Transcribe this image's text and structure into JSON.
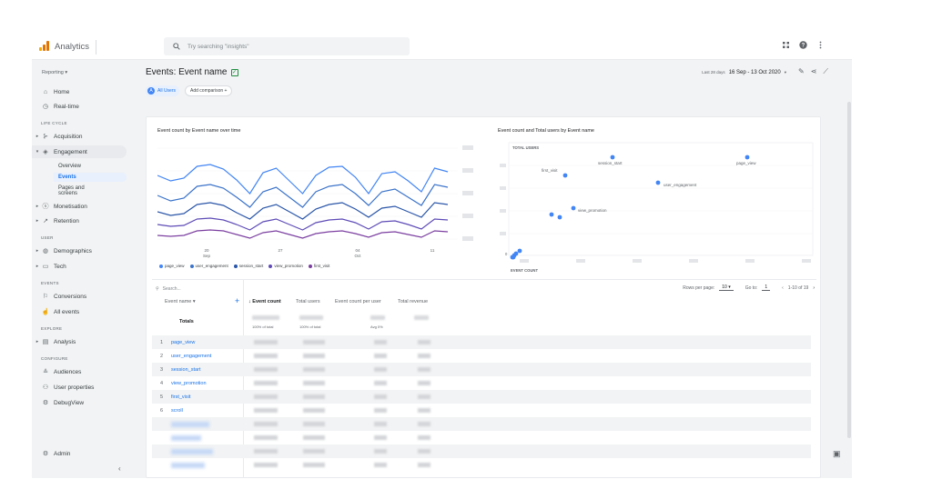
{
  "app": {
    "brand": "Analytics",
    "search_placeholder": "Try searching \"insights\"",
    "logo_colors": [
      "#f9ab00",
      "#e37400",
      "#e37400"
    ]
  },
  "sidebar": {
    "property": "Reporting",
    "home": "Home",
    "realtime": "Real-time",
    "sec_lifecycle": "LIFE CYCLE",
    "acquisition": "Acquisition",
    "engagement": "Engagement",
    "overview": "Overview",
    "events": "Events",
    "pages_screens_1": "Pages and",
    "pages_screens_2": "screens",
    "monetisation": "Monetisation",
    "retention": "Retention",
    "sec_user": "USER",
    "demographics": "Demographics",
    "tech": "Tech",
    "sec_events": "EVENTS",
    "conversions": "Conversions",
    "all_events": "All events",
    "sec_explore": "EXPLORE",
    "analysis": "Analysis",
    "sec_configure": "CONFIGURE",
    "audiences": "Audiences",
    "user_properties": "User properties",
    "debugview": "DebugView",
    "admin": "Admin"
  },
  "header": {
    "title": "Events: Event name",
    "date_label": "Last 28 days",
    "date_range": "16 Sep - 13 Oct 2020",
    "all_users": "All Users",
    "all_users_initial": "A",
    "add_comparison": "Add comparison"
  },
  "line_chart": {
    "title": "Event count by Event name over time",
    "x_ticks": [
      {
        "day": "20",
        "month": "Sep"
      },
      {
        "day": "27",
        "month": ""
      },
      {
        "day": "04",
        "month": "Oct"
      },
      {
        "day": "11",
        "month": ""
      }
    ],
    "legend": [
      {
        "name": "page_view",
        "color": "#4285f4"
      },
      {
        "name": "user_engagement",
        "color": "#3b73c9"
      },
      {
        "name": "session_start",
        "color": "#2a56a8"
      },
      {
        "name": "view_promotion",
        "color": "#5e4bb6"
      },
      {
        "name": "first_visit",
        "color": "#7b3fa0"
      }
    ]
  },
  "scatter_chart": {
    "title": "Event count and Total users by Event name",
    "y_label": "TOTAL USERS",
    "x_label": "EVENT COUNT",
    "labels": [
      "session_start",
      "page_view",
      "first_visit",
      "user_engagement",
      "view_promotion"
    ],
    "zero": "0"
  },
  "table": {
    "search_placeholder": "Search...",
    "rows_per_page_label": "Rows per page:",
    "rows_per_page": "10",
    "goto_label": "Go to:",
    "goto_value": "1",
    "range": "1-10 of 19",
    "col_event_name": "Event name",
    "col_event_count": "↓ Event count",
    "col_total_users": "Total users",
    "col_per_user": "Event count per user",
    "col_revenue": "Total revenue",
    "totals_label": "Totals",
    "totals_sub_count": "100% of total",
    "totals_sub_users": "100% of total",
    "totals_sub_avg": "Avg 0%",
    "rows": [
      {
        "n": "1",
        "name": "page_view"
      },
      {
        "n": "2",
        "name": "user_engagement"
      },
      {
        "n": "3",
        "name": "session_start"
      },
      {
        "n": "4",
        "name": "view_promotion"
      },
      {
        "n": "5",
        "name": "first_visit"
      },
      {
        "n": "6",
        "name": "scroll"
      }
    ]
  }
}
